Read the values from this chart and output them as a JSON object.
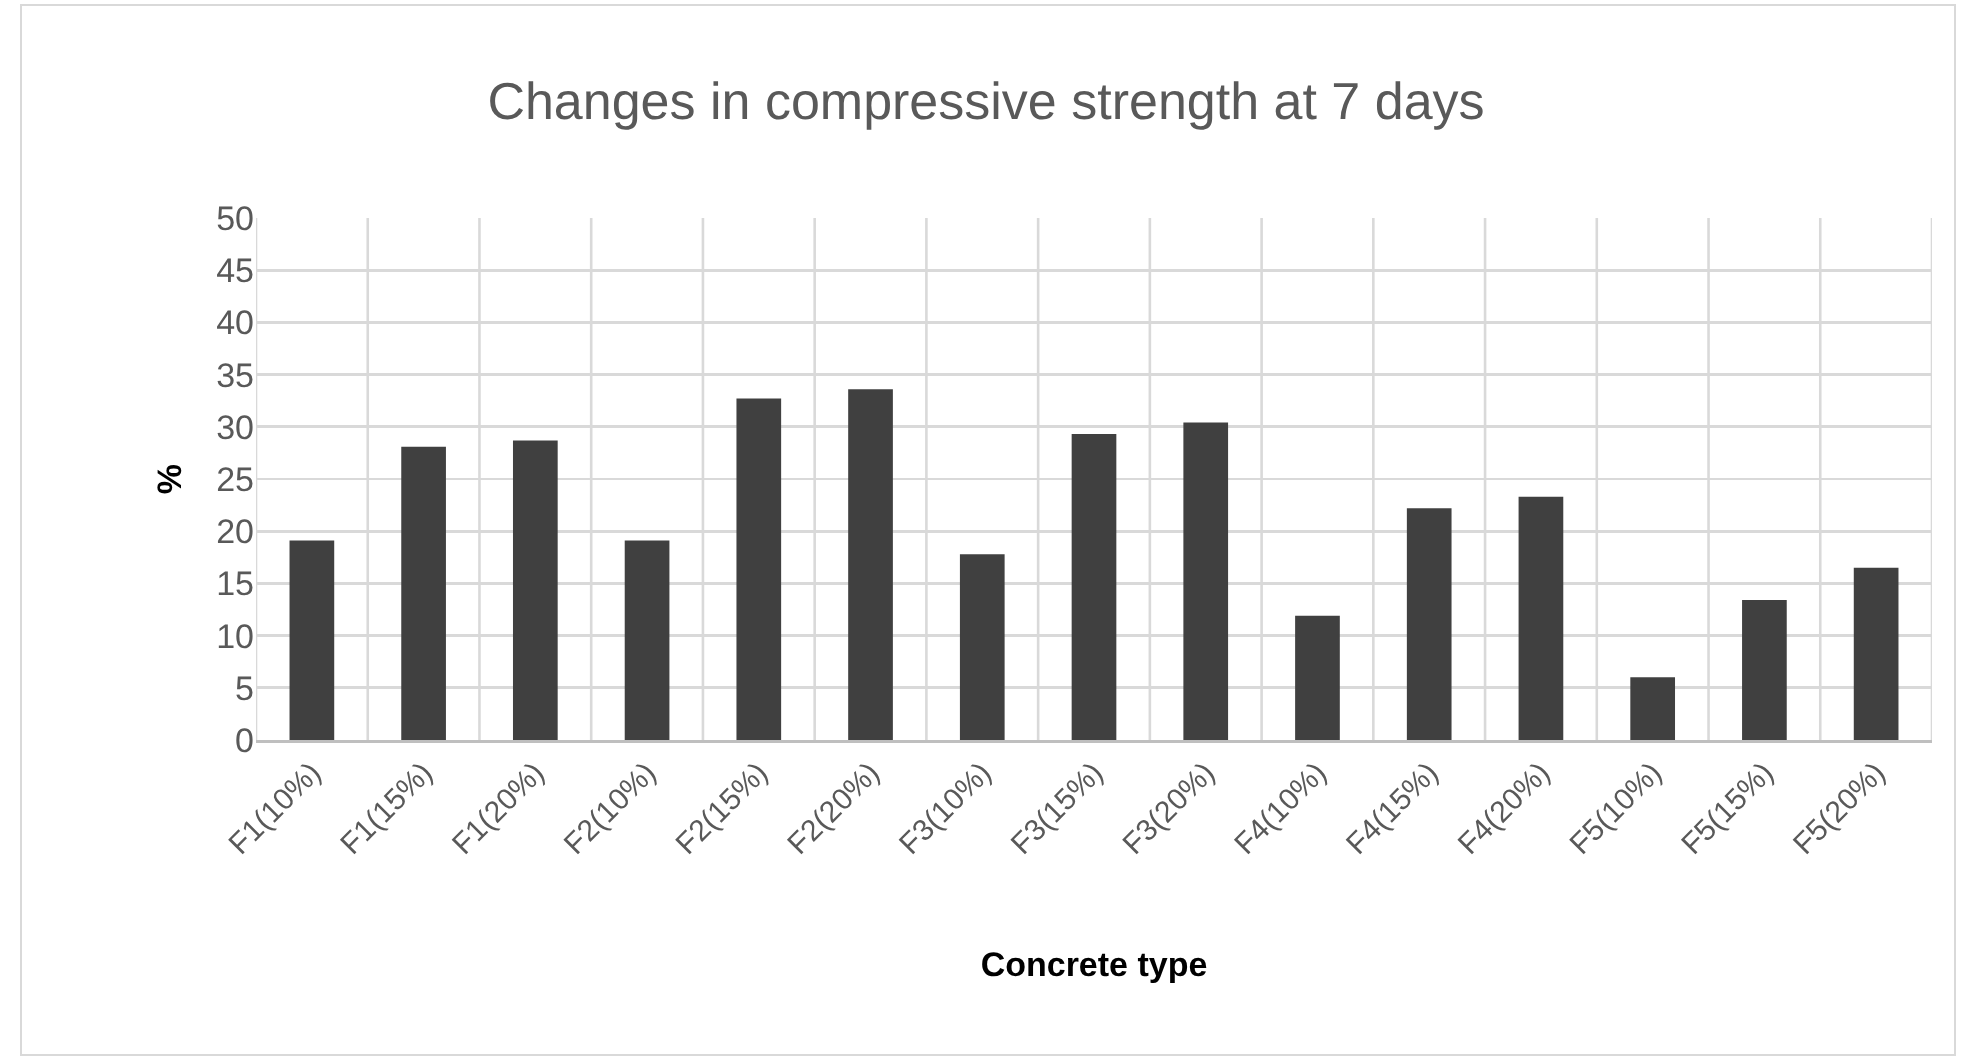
{
  "chart_data": {
    "type": "bar",
    "title": "Changes in compressive strength at 7 days",
    "xlabel": "Concrete type",
    "ylabel": "%",
    "categories": [
      "F1(10%)",
      "F1(15%)",
      "F1(20%)",
      "F2(10%)",
      "F2(15%)",
      "F2(20%)",
      "F3(10%)",
      "F3(15%)",
      "F3(20%)",
      "F4(10%)",
      "F4(15%)",
      "F4(20%)",
      "F5(10%)",
      "F5(15%)",
      "F5(20%)"
    ],
    "values": [
      19.1,
      28.1,
      28.7,
      19.1,
      32.7,
      33.6,
      17.8,
      29.3,
      30.4,
      11.9,
      22.2,
      23.3,
      6.0,
      13.4,
      16.5
    ],
    "color": "#404040",
    "ylim": [
      0,
      50
    ],
    "yticks": [
      0,
      5,
      10,
      15,
      20,
      25,
      30,
      35,
      40,
      45,
      50
    ],
    "grid": true
  }
}
